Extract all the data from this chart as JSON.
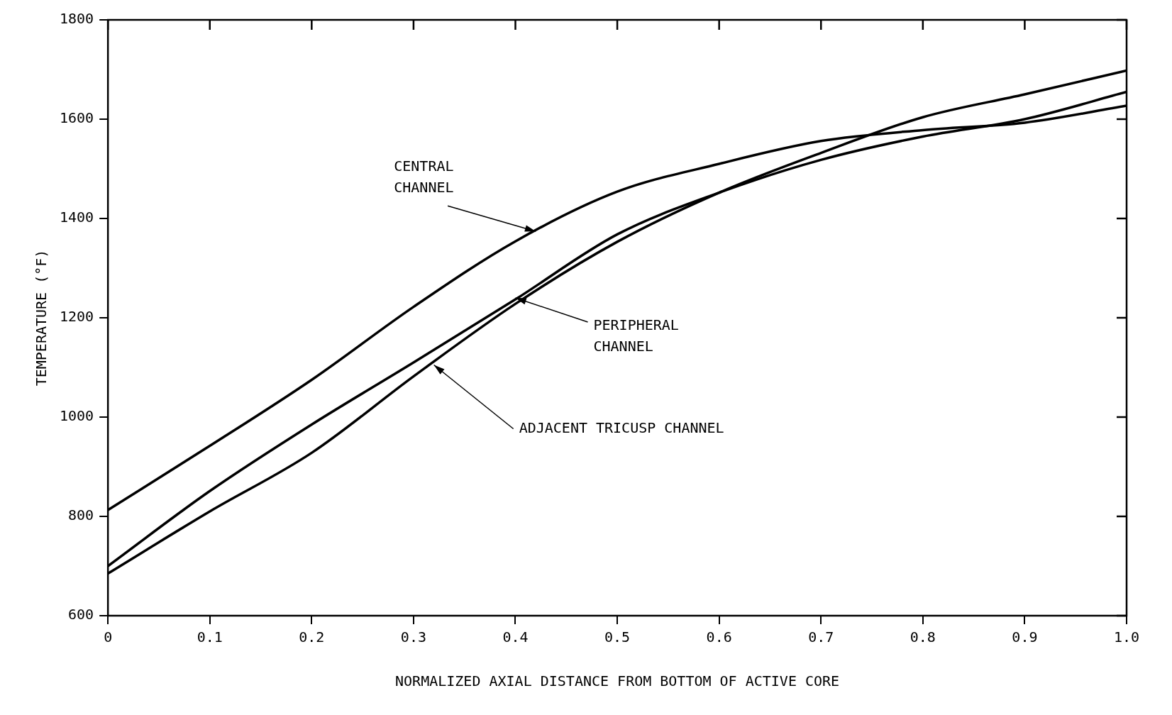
{
  "chart_data": {
    "type": "line",
    "xlabel": "NORMALIZED AXIAL DISTANCE FROM BOTTOM OF ACTIVE CORE",
    "ylabel": "TEMPERATURE (°F)",
    "x": [
      0,
      0.1,
      0.2,
      0.3,
      0.4,
      0.5,
      0.6,
      0.7,
      0.8,
      0.9,
      1.0
    ],
    "series": [
      {
        "color": "#000000",
        "values": [
          813,
          942,
          1075,
          1222,
          1354,
          1454,
          1510,
          1556,
          1578,
          1593,
          1627
        ]
      },
      {
        "color": "#000000",
        "values": [
          700,
          851,
          985,
          1110,
          1237,
          1368,
          1452,
          1518,
          1565,
          1600,
          1655
        ]
      },
      {
        "color": "#000000",
        "values": [
          685,
          810,
          928,
          1082,
          1228,
          1353,
          1452,
          1532,
          1604,
          1650,
          1698
        ]
      }
    ],
    "xlim": [
      0,
      1.0
    ],
    "xticks": [
      0,
      0.1,
      0.2,
      0.3,
      0.4,
      0.5,
      0.6,
      0.7,
      0.8,
      0.9,
      {
        "value": 1.0,
        "label": "1.0"
      }
    ],
    "ylim": [
      600,
      1800
    ],
    "yticks": [
      600,
      800,
      1000,
      1200,
      1400,
      1600,
      1800
    ],
    "grid": false,
    "legend": false,
    "marker": "none",
    "line_style": "solid",
    "annotations": [
      {
        "text": "CENTRAL\nCHANNEL",
        "x": 0.42,
        "y": 1374
      },
      {
        "text": "PERIPHERAL\nCHANNEL",
        "x": 0.4,
        "y": 1240
      },
      {
        "text": "ADJACENT TRICUSP CHANNEL",
        "x": 0.32,
        "y": 1105
      }
    ]
  }
}
